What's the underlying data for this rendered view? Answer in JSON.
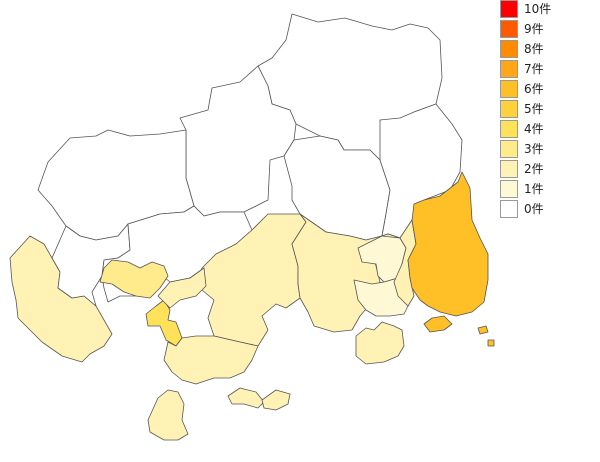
{
  "legend": {
    "items": [
      {
        "label": "10件",
        "color": "#ff0000"
      },
      {
        "label": "9件",
        "color": "#ff5a00"
      },
      {
        "label": "8件",
        "color": "#ff8c00"
      },
      {
        "label": "7件",
        "color": "#ffa61a"
      },
      {
        "label": "6件",
        "color": "#ffbf26"
      },
      {
        "label": "5件",
        "color": "#ffd23c"
      },
      {
        "label": "4件",
        "color": "#ffe15a"
      },
      {
        "label": "3件",
        "color": "#ffea8c"
      },
      {
        "label": "2件",
        "color": "#fff2b4"
      },
      {
        "label": "1件",
        "color": "#fff8d4"
      },
      {
        "label": "0件",
        "color": "#ffffff"
      }
    ]
  },
  "map": {
    "regions": [
      {
        "name": "northeast-highland",
        "count": 0
      },
      {
        "name": "north-central",
        "count": 0
      },
      {
        "name": "northwest",
        "count": 0
      },
      {
        "name": "central-north",
        "count": 0
      },
      {
        "name": "east-north",
        "count": 0
      },
      {
        "name": "far-west",
        "count": 2
      },
      {
        "name": "west-coastal",
        "count": 0
      },
      {
        "name": "west-inner",
        "count": 0
      },
      {
        "name": "inner-pocket",
        "count": 3
      },
      {
        "name": "central-east",
        "count": 2
      },
      {
        "name": "east-central",
        "count": 2
      },
      {
        "name": "east-mid",
        "count": 1
      },
      {
        "name": "east-south",
        "count": 1
      },
      {
        "name": "east-riverside",
        "count": 2
      },
      {
        "name": "far-east",
        "count": 6
      },
      {
        "name": "city-center",
        "count": 4
      },
      {
        "name": "city-north",
        "count": 2
      },
      {
        "name": "south-coastal",
        "count": 2
      },
      {
        "name": "island-large",
        "count": 2
      },
      {
        "name": "island-southwest",
        "count": 2
      },
      {
        "name": "island-south",
        "count": 2
      },
      {
        "name": "island-east",
        "count": 2
      },
      {
        "name": "islets-far-east",
        "count": 6
      }
    ]
  }
}
